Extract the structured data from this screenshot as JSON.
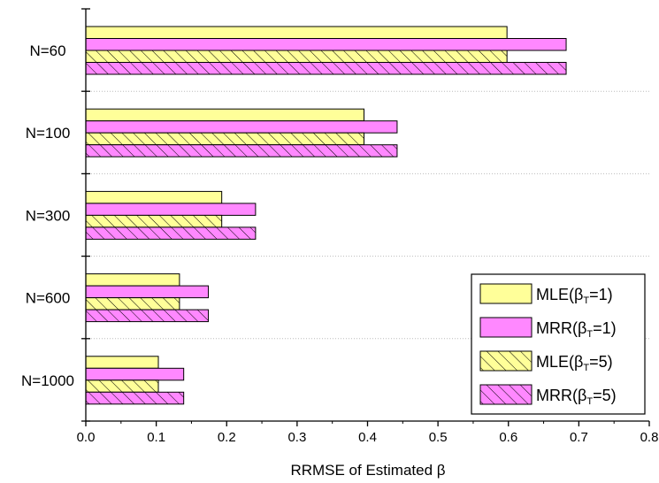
{
  "chart_data": {
    "type": "bar",
    "orientation": "horizontal",
    "categories": [
      "N=60",
      "N=100",
      "N=300",
      "N=600",
      "N=1000"
    ],
    "series": [
      {
        "name": "MLE(βT=1)",
        "base": "MLE(β",
        "sub": "T",
        "tail": "=1)",
        "color": "#ffff99",
        "pattern": "solid",
        "values": [
          0.598,
          0.395,
          0.193,
          0.133,
          0.103
        ]
      },
      {
        "name": "MRR(βT=1)",
        "base": "MRR(β",
        "sub": "T",
        "tail": "=1)",
        "color": "#ff88ff",
        "pattern": "solid",
        "values": [
          0.682,
          0.442,
          0.241,
          0.174,
          0.139
        ]
      },
      {
        "name": "MLE(βT=5)",
        "base": "MLE(β",
        "sub": "T",
        "tail": "=5)",
        "color": "#ffff99",
        "pattern": "hatch",
        "values": [
          0.598,
          0.395,
          0.193,
          0.133,
          0.103
        ]
      },
      {
        "name": "MRR(βT=5)",
        "base": "MRR(β",
        "sub": "T",
        "tail": "=5)",
        "color": "#ff88ff",
        "pattern": "hatch",
        "values": [
          0.682,
          0.442,
          0.241,
          0.174,
          0.139
        ]
      }
    ],
    "xlabel": "RRMSE of Estimated β",
    "xlim": [
      0.0,
      0.8
    ],
    "xticks": [
      "0.0",
      "0.1",
      "0.2",
      "0.3",
      "0.4",
      "0.5",
      "0.6",
      "0.7",
      "0.8"
    ],
    "legend": "bottom-right",
    "grid": "dotted separators between categories"
  }
}
